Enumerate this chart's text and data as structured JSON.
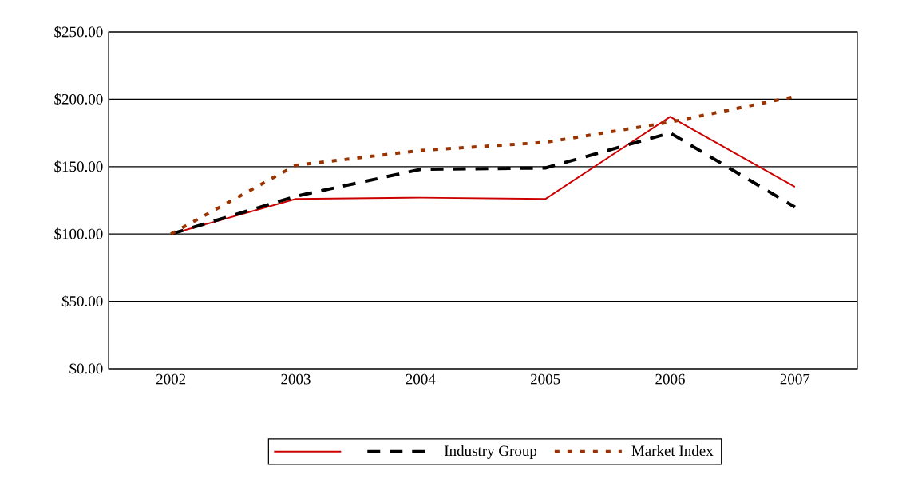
{
  "chart_data": {
    "type": "line",
    "categories": [
      "2002",
      "2003",
      "2004",
      "2005",
      "2006",
      "2007"
    ],
    "series": [
      {
        "name": null,
        "color": "#cc0000",
        "line_style": "solid",
        "values": [
          100,
          126,
          127,
          126,
          187,
          135
        ]
      },
      {
        "name": "Industry Group",
        "color": "#000000",
        "line_style": "dashed",
        "values": [
          100,
          128,
          148,
          149,
          175,
          120
        ]
      },
      {
        "name": "Market Index",
        "color": "#993300",
        "line_style": "dotted",
        "values": [
          100,
          151,
          162,
          168,
          183,
          202
        ]
      }
    ],
    "ylim": [
      0,
      250
    ],
    "yticks": [
      {
        "value": 0,
        "label": "$0.00"
      },
      {
        "value": 50,
        "label": "$50.00"
      },
      {
        "value": 100,
        "label": "$100.00"
      },
      {
        "value": 150,
        "label": "$150.00"
      },
      {
        "value": 200,
        "label": "$200.00"
      },
      {
        "value": 250,
        "label": "$250.00"
      }
    ],
    "grid": "y",
    "legend": "bottom",
    "marker": "none"
  }
}
